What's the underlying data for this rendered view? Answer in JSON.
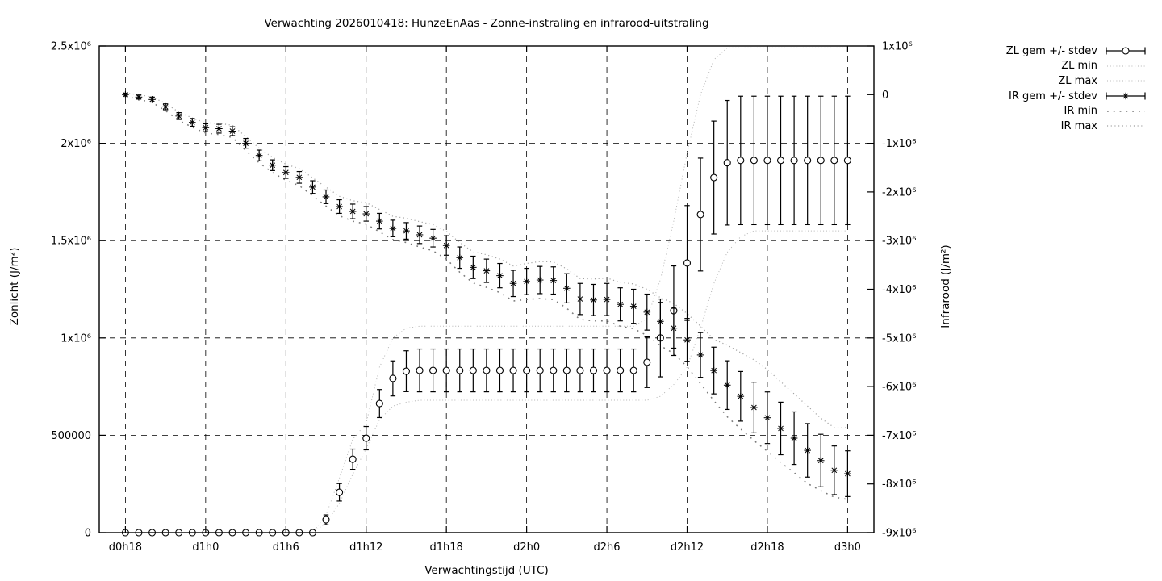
{
  "chart_data": {
    "type": "line",
    "title": "Verwachting 2026010418: HunzeEnAas - Zonne-instraling en infrarood-uitstraling",
    "xlabel": "Verwachtingstijd (UTC)",
    "ylabel_left": "Zonlicht (J/m²)",
    "ylabel_right": "Infrarood (J/m²)",
    "grid": true,
    "legend_position": "outside-top-right",
    "x_hours_per_point": 1,
    "x_ticks": [
      {
        "hour": 0,
        "label": "d0h18"
      },
      {
        "hour": 6,
        "label": "d1h0"
      },
      {
        "hour": 12,
        "label": "d1h6"
      },
      {
        "hour": 18,
        "label": "d1h12"
      },
      {
        "hour": 24,
        "label": "d1h18"
      },
      {
        "hour": 30,
        "label": "d2h0"
      },
      {
        "hour": 36,
        "label": "d2h6"
      },
      {
        "hour": 42,
        "label": "d2h12"
      },
      {
        "hour": 48,
        "label": "d2h18"
      },
      {
        "hour": 54,
        "label": "d3h0"
      }
    ],
    "y_left": {
      "range": [
        0,
        2500000
      ],
      "ticks": [
        {
          "value": 2500000,
          "label": "2.5x10⁶"
        },
        {
          "value": 2000000,
          "label": "2x10⁶"
        },
        {
          "value": 1500000,
          "label": "1.5x10⁶"
        },
        {
          "value": 1000000,
          "label": "1x10⁶"
        },
        {
          "value": 500000,
          "label": "500000"
        },
        {
          "value": 0,
          "label": "0"
        }
      ]
    },
    "y_right": {
      "range": [
        -9000000,
        1000000
      ],
      "ticks": [
        {
          "value": 1000000,
          "label": "1x10⁶"
        },
        {
          "value": 0,
          "label": "0"
        },
        {
          "value": -1000000,
          "label": "-1x10⁶"
        },
        {
          "value": -2000000,
          "label": "-2x10⁶"
        },
        {
          "value": -3000000,
          "label": "-3x10⁶"
        },
        {
          "value": -4000000,
          "label": "-4x10⁶"
        },
        {
          "value": -5000000,
          "label": "-5x10⁶"
        },
        {
          "value": -6000000,
          "label": "-6x10⁶"
        },
        {
          "value": -7000000,
          "label": "-7x10⁶"
        },
        {
          "value": -8000000,
          "label": "-8x10⁶"
        },
        {
          "value": -9000000,
          "label": "-9x10⁶"
        }
      ]
    },
    "series": [
      {
        "name": "ZL gem +/- stdev",
        "axis": "left",
        "style": "errorbar",
        "marker": "circle",
        "color": "#000000",
        "values": [
          0,
          0,
          0,
          0,
          0,
          0,
          0,
          0,
          0,
          0,
          0,
          0,
          0,
          0,
          0,
          66000,
          207000,
          377000,
          485000,
          663000,
          792000,
          829000,
          833000,
          833000,
          833000,
          833000,
          833000,
          833000,
          833000,
          833000,
          833000,
          833000,
          833000,
          833000,
          833000,
          833000,
          833000,
          833000,
          833000,
          875000,
          1000000,
          1140000,
          1385000,
          1634000,
          1824000,
          1900000,
          1912000,
          1912000,
          1912000,
          1912000,
          1912000,
          1912000,
          1912000,
          1912000,
          1912000
        ],
        "stdev": [
          0,
          0,
          0,
          0,
          0,
          0,
          0,
          0,
          0,
          0,
          0,
          0,
          0,
          0,
          0,
          25000,
          45000,
          52000,
          60000,
          72000,
          90000,
          105000,
          110000,
          110000,
          110000,
          110000,
          110000,
          110000,
          110000,
          110000,
          110000,
          110000,
          110000,
          110000,
          110000,
          110000,
          110000,
          110000,
          110000,
          130000,
          200000,
          230000,
          295000,
          290000,
          290000,
          320000,
          330000,
          330000,
          330000,
          330000,
          330000,
          330000,
          330000,
          330000,
          330000
        ]
      },
      {
        "name": "ZL min",
        "axis": "left",
        "style": "dotted-fine",
        "color": "#b5b5b5",
        "values": [
          0,
          0,
          0,
          0,
          0,
          0,
          0,
          0,
          0,
          0,
          0,
          0,
          0,
          0,
          0,
          50000,
          150000,
          300000,
          430000,
          580000,
          650000,
          670000,
          680000,
          680000,
          680000,
          680000,
          680000,
          680000,
          680000,
          680000,
          680000,
          680000,
          680000,
          680000,
          680000,
          680000,
          680000,
          680000,
          680000,
          680000,
          700000,
          760000,
          850000,
          1050000,
          1280000,
          1440000,
          1520000,
          1550000,
          1550000,
          1550000,
          1550000,
          1550000,
          1550000,
          1550000,
          1550000
        ]
      },
      {
        "name": "ZL max",
        "axis": "left",
        "style": "dotted-fine",
        "color": "#b5b5b5",
        "values": [
          0,
          0,
          0,
          0,
          0,
          0,
          0,
          0,
          0,
          0,
          0,
          0,
          0,
          0,
          0,
          90000,
          280000,
          480000,
          560000,
          850000,
          1000000,
          1050000,
          1060000,
          1060000,
          1060000,
          1060000,
          1060000,
          1060000,
          1060000,
          1060000,
          1060000,
          1060000,
          1060000,
          1060000,
          1060000,
          1060000,
          1060000,
          1060000,
          1060000,
          1100000,
          1300000,
          1600000,
          1950000,
          2250000,
          2430000,
          2490000,
          2490000,
          2490000,
          2490000,
          2490000,
          2490000,
          2490000,
          2490000,
          2490000,
          2490000
        ]
      },
      {
        "name": "IR gem +/- stdev",
        "axis": "right",
        "style": "errorbar",
        "marker": "star",
        "color": "#000000",
        "values": [
          0,
          -50000,
          -100000,
          -250000,
          -440000,
          -570000,
          -680000,
          -700000,
          -750000,
          -1000000,
          -1250000,
          -1450000,
          -1600000,
          -1700000,
          -1900000,
          -2100000,
          -2300000,
          -2400000,
          -2450000,
          -2600000,
          -2750000,
          -2800000,
          -2880000,
          -2950000,
          -3100000,
          -3350000,
          -3550000,
          -3620000,
          -3720000,
          -3880000,
          -3840000,
          -3810000,
          -3820000,
          -3980000,
          -4200000,
          -4220000,
          -4210000,
          -4310000,
          -4350000,
          -4470000,
          -4660000,
          -4800000,
          -5040000,
          -5350000,
          -5670000,
          -5970000,
          -6200000,
          -6430000,
          -6640000,
          -6860000,
          -7060000,
          -7310000,
          -7520000,
          -7720000,
          -7790000
        ],
        "stdev": [
          30000,
          40000,
          50000,
          60000,
          70000,
          80000,
          80000,
          90000,
          90000,
          100000,
          110000,
          110000,
          120000,
          120000,
          130000,
          140000,
          140000,
          150000,
          150000,
          160000,
          170000,
          170000,
          180000,
          180000,
          200000,
          220000,
          230000,
          240000,
          250000,
          270000,
          270000,
          280000,
          280000,
          300000,
          320000,
          320000,
          330000,
          340000,
          350000,
          370000,
          390000,
          410000,
          440000,
          460000,
          480000,
          500000,
          510000,
          520000,
          530000,
          540000,
          540000,
          550000,
          540000,
          500000,
          470000
        ]
      },
      {
        "name": "IR min",
        "axis": "right",
        "style": "dotted-sparse",
        "color": "#787878",
        "values": [
          -30000,
          -100000,
          -160000,
          -330000,
          -530000,
          -670000,
          -790000,
          -820000,
          -880000,
          -1150000,
          -1400000,
          -1600000,
          -1760000,
          -1870000,
          -2080000,
          -2290000,
          -2490000,
          -2600000,
          -2660000,
          -2820000,
          -2980000,
          -3040000,
          -3130000,
          -3210000,
          -3380000,
          -3650000,
          -3870000,
          -3960000,
          -4070000,
          -4240000,
          -4210000,
          -4190000,
          -4210000,
          -4390000,
          -4620000,
          -4650000,
          -4650000,
          -4760000,
          -4810000,
          -4950000,
          -5160000,
          -5320000,
          -5590000,
          -5940000,
          -6290000,
          -6620000,
          -6870000,
          -7110000,
          -7330000,
          -7560000,
          -7770000,
          -7990000,
          -8140000,
          -8270000,
          -8320000
        ]
      },
      {
        "name": "IR max",
        "axis": "right",
        "style": "dotted-medium",
        "color": "#9e9e9e",
        "values": [
          30000,
          0,
          -50000,
          -180000,
          -360000,
          -480000,
          -580000,
          -590000,
          -630000,
          -860000,
          -1100000,
          -1290000,
          -1430000,
          -1520000,
          -1710000,
          -1900000,
          -2090000,
          -2180000,
          -2220000,
          -2360000,
          -2500000,
          -2540000,
          -2610000,
          -2670000,
          -2810000,
          -3040000,
          -3230000,
          -3290000,
          -3380000,
          -3520000,
          -3470000,
          -3430000,
          -3440000,
          -3580000,
          -3780000,
          -3790000,
          -3770000,
          -3860000,
          -3890000,
          -4000000,
          -4170000,
          -4290000,
          -4500000,
          -4760000,
          -5030000,
          -5150000,
          -5300000,
          -5450000,
          -5650000,
          -5900000,
          -6150000,
          -6400000,
          -6650000,
          -6840000,
          -6840000
        ]
      }
    ]
  }
}
